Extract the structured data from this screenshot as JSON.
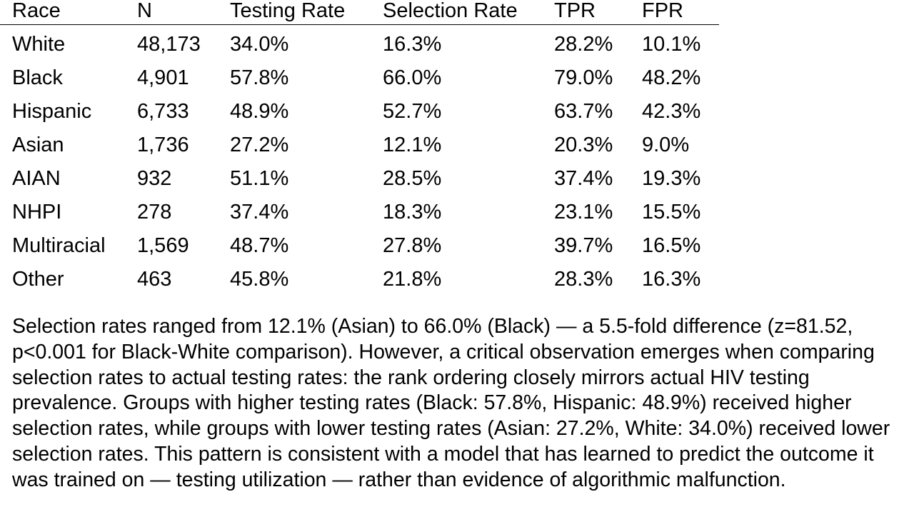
{
  "table": {
    "columns": [
      "Race",
      "N",
      "Testing Rate",
      "Selection Rate",
      "TPR",
      "FPR"
    ],
    "rows": [
      [
        "White",
        "48,173",
        "34.0%",
        "16.3%",
        "28.2%",
        "10.1%"
      ],
      [
        "Black",
        "4,901",
        "57.8%",
        "66.0%",
        "79.0%",
        "48.2%"
      ],
      [
        "Hispanic",
        "6,733",
        "48.9%",
        "52.7%",
        "63.7%",
        "42.3%"
      ],
      [
        "Asian",
        "1,736",
        "27.2%",
        "12.1%",
        "20.3%",
        "9.0%"
      ],
      [
        "AIAN",
        "932",
        "51.1%",
        "28.5%",
        "37.4%",
        "19.3%"
      ],
      [
        "NHPI",
        "278",
        "37.4%",
        "18.3%",
        "23.1%",
        "15.5%"
      ],
      [
        "Multiracial",
        "1,569",
        "48.7%",
        "27.8%",
        "39.7%",
        "16.5%"
      ],
      [
        "Other",
        "463",
        "45.8%",
        "21.8%",
        "28.3%",
        "16.3%"
      ]
    ]
  },
  "paragraph": "Selection rates ranged from 12.1% (Asian) to 66.0% (Black) — a 5.5-fold difference (z=81.52, p<0.001 for Black-White comparison). However, a critical observation emerges when comparing selection rates to actual testing rates: the rank ordering closely mirrors actual HIV testing prevalence. Groups with higher testing rates (Black: 57.8%, Hispanic: 48.9%) received higher selection rates, while groups with lower testing rates (Asian: 27.2%, White: 34.0%) received lower selection rates. This pattern is consistent with a model that has learned to predict the outcome it was trained on — testing utilization — rather than evidence of algorithmic malfunction."
}
